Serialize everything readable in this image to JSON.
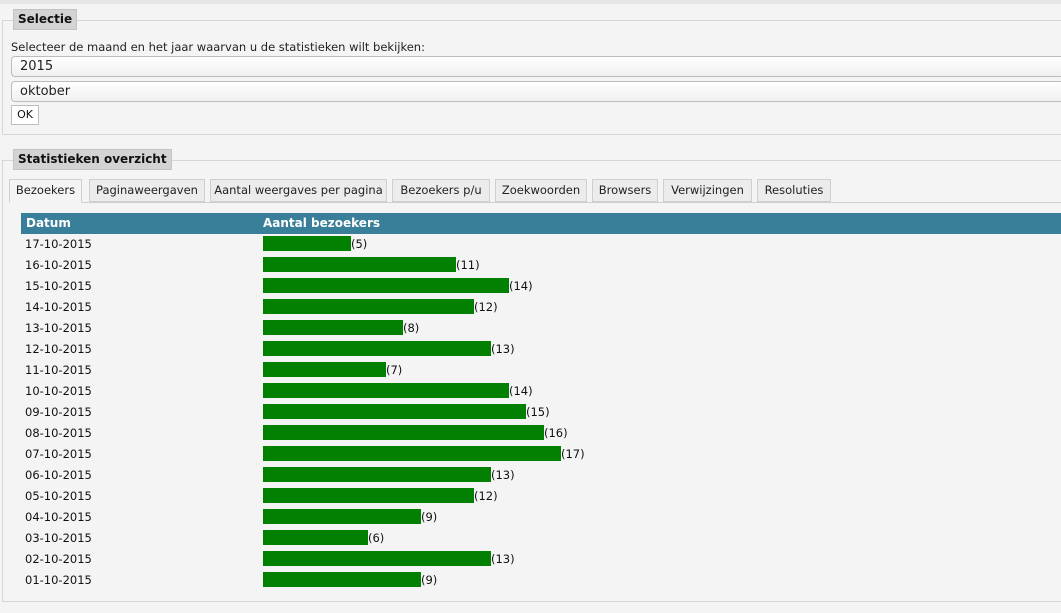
{
  "selectie": {
    "legend": "Selectie",
    "instruction": "Selecteer de maand en het jaar waarvan u de statistieken wilt bekijken:",
    "year": "2015",
    "month": "oktober",
    "ok_label": "OK"
  },
  "stats": {
    "legend": "Statistieken overzicht",
    "tabs": [
      {
        "label": "Bezoekers",
        "active": true
      },
      {
        "label": "Paginaweergaven",
        "active": false
      },
      {
        "label": "Aantal weergaves per pagina",
        "active": false
      },
      {
        "label": "Bezoekers p/u",
        "active": false
      },
      {
        "label": "Zoekwoorden",
        "active": false
      },
      {
        "label": "Browsers",
        "active": false
      },
      {
        "label": "Verwijzingen",
        "active": false
      },
      {
        "label": "Resoluties",
        "active": false
      }
    ],
    "columns": [
      "Datum",
      "Aantal bezoekers"
    ],
    "colors": {
      "header": "#3a7f99",
      "bar": "#018001"
    }
  },
  "chart_data": {
    "type": "bar",
    "orientation": "horizontal",
    "categories": [
      "17-10-2015",
      "16-10-2015",
      "15-10-2015",
      "14-10-2015",
      "13-10-2015",
      "12-10-2015",
      "11-10-2015",
      "10-10-2015",
      "09-10-2015",
      "08-10-2015",
      "07-10-2015",
      "06-10-2015",
      "05-10-2015",
      "04-10-2015",
      "03-10-2015",
      "02-10-2015",
      "01-10-2015"
    ],
    "values": [
      5,
      11,
      14,
      12,
      8,
      13,
      7,
      14,
      15,
      16,
      17,
      13,
      12,
      9,
      6,
      13,
      9
    ],
    "value_labels": [
      "(5)",
      "(11)",
      "(14)",
      "(12)",
      "(8)",
      "(13)",
      "(7)",
      "(14)",
      "(15)",
      "(16)",
      "(17)",
      "(13)",
      "(12)",
      "(9)",
      "(6)",
      "(13)",
      "(9)"
    ],
    "xlabel": "Aantal bezoekers",
    "ylabel": "Datum"
  }
}
